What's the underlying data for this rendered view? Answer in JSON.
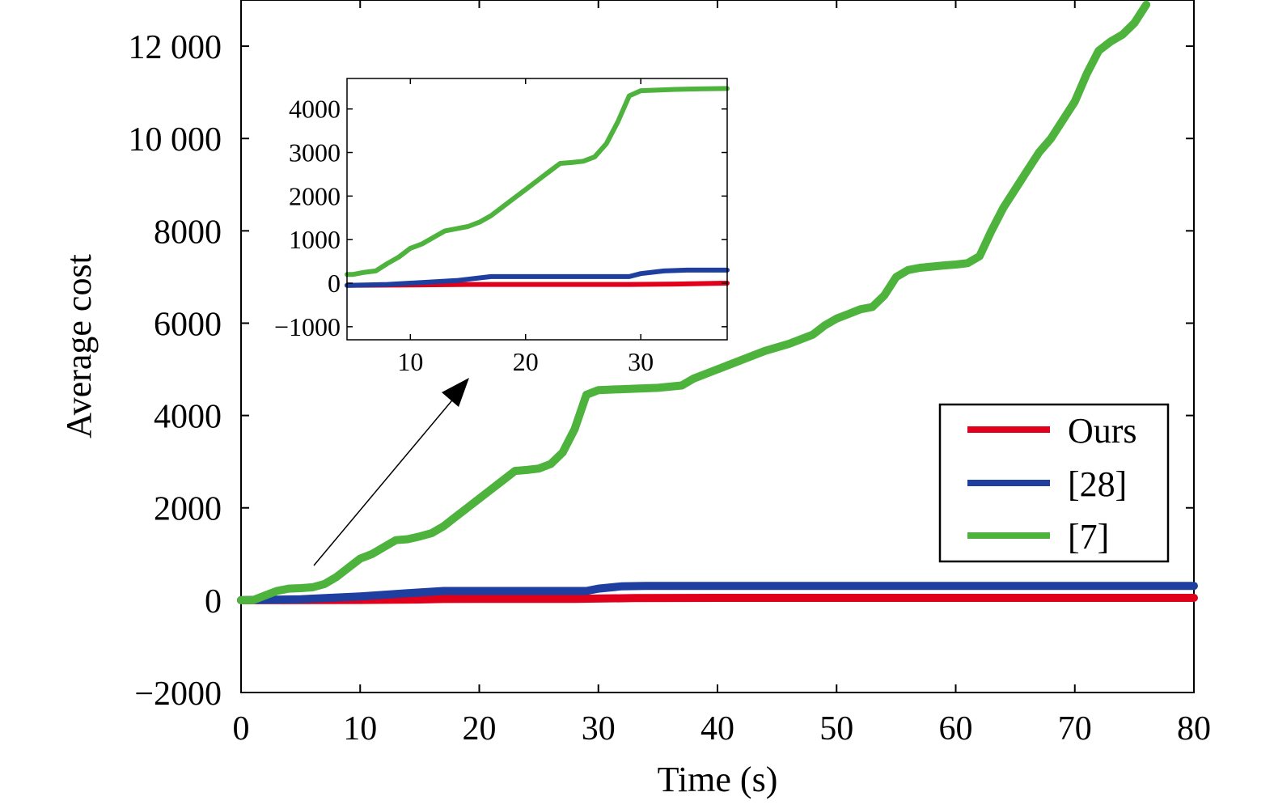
{
  "chart_data": [
    {
      "type": "line",
      "role": "main",
      "title": "",
      "xlabel": "Time (s)",
      "ylabel": "Average cost",
      "xlim": [
        0,
        80
      ],
      "ylim": [
        -2000,
        13000
      ],
      "xticks": [
        0,
        10,
        20,
        30,
        40,
        50,
        60,
        70,
        80
      ],
      "xtick_labels": [
        "0",
        "10",
        "20",
        "30",
        "40",
        "50",
        "60",
        "70",
        "80"
      ],
      "yticks": [
        -2000,
        0,
        2000,
        4000,
        6000,
        8000,
        10000,
        12000
      ],
      "ytick_labels": [
        "−2000",
        "0",
        "2000",
        "4000",
        "6000",
        "8000",
        "10 000",
        "12 000"
      ],
      "legend_position": "right",
      "legend": [
        "Ours",
        "[28]",
        "[7]"
      ],
      "series": [
        {
          "name": "Ours",
          "color": "#e0001b",
          "points": [
            [
              0,
              0
            ],
            [
              10,
              5
            ],
            [
              15,
              15
            ],
            [
              17,
              25
            ],
            [
              20,
              30
            ],
            [
              25,
              30
            ],
            [
              28,
              30
            ],
            [
              33,
              45
            ],
            [
              40,
              50
            ],
            [
              50,
              50
            ],
            [
              60,
              50
            ],
            [
              70,
              50
            ],
            [
              80,
              50
            ]
          ]
        },
        {
          "name": "[28]",
          "color": "#1f3fa0",
          "points": [
            [
              0,
              0
            ],
            [
              5,
              20
            ],
            [
              10,
              80
            ],
            [
              14,
              150
            ],
            [
              17,
              200
            ],
            [
              20,
              200
            ],
            [
              25,
              200
            ],
            [
              29,
              200
            ],
            [
              30,
              250
            ],
            [
              32,
              300
            ],
            [
              34,
              310
            ],
            [
              40,
              310
            ],
            [
              50,
              310
            ],
            [
              60,
              310
            ],
            [
              70,
              310
            ],
            [
              80,
              310
            ]
          ]
        },
        {
          "name": "[7]",
          "color": "#4db33d",
          "points": [
            [
              0,
              0
            ],
            [
              1,
              0
            ],
            [
              2,
              100
            ],
            [
              3,
              200
            ],
            [
              4,
              250
            ],
            [
              5,
              260
            ],
            [
              6,
              280
            ],
            [
              7,
              350
            ],
            [
              8,
              500
            ],
            [
              9,
              700
            ],
            [
              10,
              900
            ],
            [
              11,
              1000
            ],
            [
              12,
              1150
            ],
            [
              13,
              1300
            ],
            [
              14,
              1320
            ],
            [
              15,
              1380
            ],
            [
              16,
              1450
            ],
            [
              17,
              1600
            ],
            [
              18,
              1800
            ],
            [
              19,
              2000
            ],
            [
              20,
              2200
            ],
            [
              21,
              2400
            ],
            [
              22,
              2600
            ],
            [
              23,
              2800
            ],
            [
              24,
              2820
            ],
            [
              25,
              2850
            ],
            [
              26,
              2950
            ],
            [
              27,
              3200
            ],
            [
              28,
              3700
            ],
            [
              29,
              4450
            ],
            [
              30,
              4550
            ],
            [
              33,
              4580
            ],
            [
              35,
              4600
            ],
            [
              37,
              4650
            ],
            [
              38,
              4800
            ],
            [
              40,
              5000
            ],
            [
              42,
              5200
            ],
            [
              44,
              5400
            ],
            [
              46,
              5550
            ],
            [
              48,
              5750
            ],
            [
              49,
              5950
            ],
            [
              50,
              6100
            ],
            [
              51,
              6200
            ],
            [
              52,
              6300
            ],
            [
              53,
              6350
            ],
            [
              54,
              6600
            ],
            [
              55,
              7000
            ],
            [
              56,
              7150
            ],
            [
              57,
              7200
            ],
            [
              59,
              7250
            ],
            [
              60,
              7270
            ],
            [
              61,
              7300
            ],
            [
              62,
              7450
            ],
            [
              63,
              8000
            ],
            [
              64,
              8500
            ],
            [
              65,
              8900
            ],
            [
              66,
              9300
            ],
            [
              67,
              9700
            ],
            [
              68,
              10000
            ],
            [
              69,
              10400
            ],
            [
              70,
              10800
            ],
            [
              71,
              11400
            ],
            [
              72,
              11900
            ],
            [
              73,
              12100
            ],
            [
              74,
              12250
            ],
            [
              75,
              12500
            ],
            [
              76,
              12900
            ]
          ]
        }
      ]
    },
    {
      "type": "line",
      "role": "inset",
      "title": "",
      "xlabel": "",
      "ylabel": "",
      "xlim": [
        4.5,
        37.5
      ],
      "ylim": [
        -1300,
        4700
      ],
      "xticks": [
        10,
        20,
        30
      ],
      "xtick_labels": [
        "10",
        "20",
        "30"
      ],
      "yticks": [
        -1000,
        0,
        1000,
        2000,
        3000,
        4000
      ],
      "ytick_labels": [
        "−1000",
        "0",
        "1000",
        "2000",
        "3000",
        "4000"
      ],
      "series": [
        {
          "name": "Ours",
          "color": "#e0001b",
          "points": [
            [
              4.5,
              -50
            ],
            [
              10,
              -40
            ],
            [
              15,
              -30
            ],
            [
              17,
              -30
            ],
            [
              20,
              -30
            ],
            [
              25,
              -30
            ],
            [
              29,
              -30
            ],
            [
              33,
              -20
            ],
            [
              37.5,
              0
            ]
          ]
        },
        {
          "name": "[28]",
          "color": "#1f3fa0",
          "points": [
            [
              4.5,
              -50
            ],
            [
              8,
              -30
            ],
            [
              10,
              0
            ],
            [
              14,
              60
            ],
            [
              17,
              150
            ],
            [
              20,
              150
            ],
            [
              25,
              150
            ],
            [
              29,
              150
            ],
            [
              30,
              220
            ],
            [
              32,
              280
            ],
            [
              34,
              300
            ],
            [
              37.5,
              300
            ]
          ]
        },
        {
          "name": "[7]",
          "color": "#4db33d",
          "points": [
            [
              4.5,
              200
            ],
            [
              5,
              200
            ],
            [
              6,
              250
            ],
            [
              7,
              280
            ],
            [
              8,
              450
            ],
            [
              9,
              600
            ],
            [
              10,
              800
            ],
            [
              11,
              900
            ],
            [
              12,
              1050
            ],
            [
              13,
              1200
            ],
            [
              14,
              1250
            ],
            [
              15,
              1300
            ],
            [
              16,
              1400
            ],
            [
              17,
              1550
            ],
            [
              18,
              1750
            ],
            [
              19,
              1950
            ],
            [
              20,
              2150
            ],
            [
              21,
              2350
            ],
            [
              22,
              2550
            ],
            [
              23,
              2750
            ],
            [
              24,
              2770
            ],
            [
              25,
              2800
            ],
            [
              26,
              2900
            ],
            [
              27,
              3200
            ],
            [
              28,
              3700
            ],
            [
              29,
              4300
            ],
            [
              30,
              4420
            ],
            [
              33,
              4450
            ],
            [
              35,
              4460
            ],
            [
              37.5,
              4470
            ]
          ]
        }
      ]
    }
  ]
}
